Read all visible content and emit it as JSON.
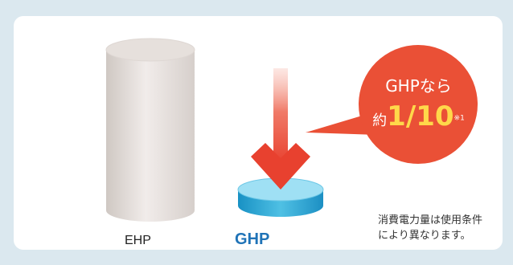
{
  "chart_data": {
    "type": "bar",
    "categories": [
      "EHP",
      "GHP"
    ],
    "values": [
      10,
      1
    ],
    "title": "",
    "xlabel": "",
    "ylabel": ""
  },
  "callout": {
    "line1": "GHPなら",
    "prefix": "約",
    "ratio": "1/10",
    "note_marker": "※1"
  },
  "note": {
    "line1": "消費電力量は使用条件",
    "line2": "により異なります。"
  },
  "colors": {
    "ehp": "#d9d2ce",
    "ghp": "#1e9ac9",
    "arrow": "#e8412f",
    "bubble": "#ea5036",
    "ghp_label": "#1f73b7"
  }
}
